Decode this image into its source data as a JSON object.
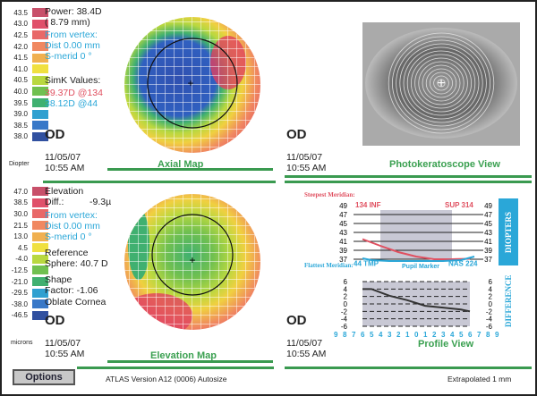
{
  "axial": {
    "scale": [
      "43.5",
      "43.0",
      "42.5",
      "42.0",
      "41.5",
      "41.0",
      "40.5",
      "40.0",
      "39.5",
      "39.0",
      "38.5",
      "38.0"
    ],
    "unit": "Diopter",
    "power": "Power:  38.4D",
    "radius": "(   8.79 mm)",
    "from_vertex": "From vertex:",
    "dist": "Dist  0.00 mm",
    "smerid": "S-merid      0 °",
    "simk_title": "SimK Values:",
    "simk1": "39.37D @134",
    "simk2": "38.12D @44",
    "eye": "OD",
    "date": "11/05/07",
    "time": "10:55 AM",
    "title": "Axial Map"
  },
  "photo": {
    "eye": "OD",
    "date": "11/05/07",
    "time": "10:55 AM",
    "title": "Photokeratoscope View"
  },
  "elevation": {
    "scale": [
      "47.0",
      "38.5",
      "30.0",
      "21.5",
      "13.0",
      "4.5",
      "-4.0",
      "-12.5",
      "-21.0",
      "-29.5",
      "-38.0",
      "-46.5"
    ],
    "unit": "microns",
    "elev": "Elevation",
    "diff_label": "Diff.:",
    "diff_value": "-9.3µ",
    "from_vertex": "From vertex:",
    "dist": "Dist  0.00 mm",
    "smerid": "S-merid      0 °",
    "ref1": "Reference",
    "ref2": "Sphere: 40.7 D",
    "shape1": "Shape",
    "shape2": "Factor: -1.06",
    "oblate": "Oblate Cornea",
    "eye": "OD",
    "date": "11/05/07",
    "time": "10:55 AM",
    "title": "Elevation Map"
  },
  "profile": {
    "steepest": "Steepest Meridian:",
    "flattest": "Flattest Meridian:",
    "d_ticks": [
      "49",
      "47",
      "45",
      "43",
      "41",
      "39",
      "37"
    ],
    "diff_ticks": [
      "6",
      "4",
      "2",
      "0",
      "-2",
      "-4",
      "-6"
    ],
    "x_ticks": [
      "9",
      "8",
      "7",
      "6",
      "5",
      "4",
      "3",
      "2",
      "1",
      "0",
      "1",
      "2",
      "3",
      "4",
      "5",
      "6",
      "7",
      "8",
      "9"
    ],
    "inf": "134 INF",
    "sup": "SUP 314",
    "tmp": "44 TMP",
    "nas": "NAS 224",
    "pupil": "Pupil Marker",
    "diopters_tab": "DIOPTERS",
    "difference_tab": "DIFFERENCE",
    "eye": "OD",
    "date": "11/05/07",
    "time": "10:55 AM",
    "title": "Profile View",
    "steep_curve": [
      [
        -6,
        41.5
      ],
      [
        -4,
        40
      ],
      [
        -2,
        38.6
      ],
      [
        0,
        37.6
      ],
      [
        2,
        37
      ],
      [
        4,
        37
      ],
      [
        6,
        37.1
      ]
    ],
    "flat_curve": [
      [
        -6,
        37.2
      ],
      [
        -5,
        36.8
      ],
      [
        -3,
        36.6
      ],
      [
        0,
        36.6
      ],
      [
        3,
        36.6
      ],
      [
        5,
        36.8
      ],
      [
        6.5,
        37.6
      ]
    ],
    "diff_curve": [
      [
        -6,
        4
      ],
      [
        -5,
        4
      ],
      [
        -3,
        2.2
      ],
      [
        -1,
        1
      ],
      [
        1,
        -0.5
      ],
      [
        3,
        -1
      ],
      [
        5,
        -1.5
      ],
      [
        6,
        -2
      ]
    ]
  },
  "footer": {
    "options": "Options",
    "version": "ATLAS  Version A12 (0006)  Autosize",
    "extrap": "Extrapolated 1 mm"
  },
  "colors": {
    "scale": [
      "#c8506a",
      "#e0506a",
      "#e86868",
      "#f08860",
      "#f0b050",
      "#f0e040",
      "#b8d840",
      "#70c050",
      "#40b070",
      "#30a0d0",
      "#3878c8",
      "#3050a0"
    ],
    "green": "#3a9a50",
    "cyan": "#2aa7d8",
    "red": "#e05060"
  }
}
